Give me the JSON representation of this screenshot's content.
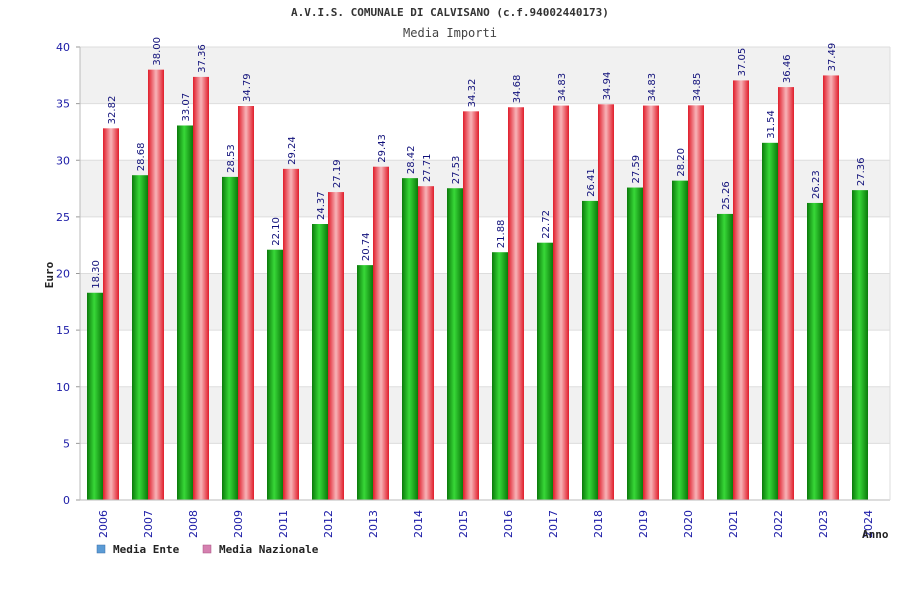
{
  "chart_data": {
    "type": "bar",
    "title": "A.V.I.S. COMUNALE DI CALVISANO (c.f.94002440173)",
    "subtitle": "Media Importi",
    "ylabel": "Euro",
    "xlabel": "Anno",
    "ylim": [
      0,
      40
    ],
    "yticks": [
      0,
      5,
      10,
      15,
      20,
      25,
      30,
      35,
      40
    ],
    "grid": true,
    "legend_position": "bottom-left",
    "categories": [
      "2006",
      "2007",
      "2008",
      "2009",
      "2011",
      "2012",
      "2013",
      "2014",
      "2015",
      "2016",
      "2017",
      "2018",
      "2019",
      "2020",
      "2021",
      "2022",
      "2023",
      "2024"
    ],
    "series": [
      {
        "name": "Media Ente",
        "legend_color": "#5b9bd5",
        "bar_color": "#1fb51f",
        "values": [
          18.3,
          28.68,
          33.07,
          28.53,
          22.1,
          24.37,
          20.74,
          28.42,
          27.53,
          21.88,
          22.72,
          26.41,
          27.59,
          28.2,
          25.26,
          31.54,
          26.23,
          27.36
        ],
        "labels": [
          "18.30",
          "28.68",
          "33.07",
          "28.53",
          "22.10",
          "24.37",
          "20.74",
          "28.42",
          "27.53",
          "21.88",
          "22.72",
          "26.41",
          "27.59",
          "28.20",
          "25.26",
          "31.54",
          "26.23",
          "27.36"
        ]
      },
      {
        "name": "Media Nazionale",
        "legend_color": "#d580b0",
        "bar_color": "#e8323c",
        "values": [
          32.82,
          38.0,
          37.36,
          34.79,
          29.24,
          27.19,
          29.43,
          27.71,
          34.32,
          34.68,
          34.83,
          34.94,
          34.83,
          34.85,
          37.05,
          36.46,
          37.49,
          null
        ],
        "labels": [
          "32.82",
          "38.00",
          "37.36",
          "34.79",
          "29.24",
          "27.19",
          "29.43",
          "27.71",
          "34.32",
          "34.68",
          "34.83",
          "34.94",
          "34.83",
          "34.85",
          "37.05",
          "36.46",
          "37.49",
          ""
        ]
      }
    ]
  }
}
